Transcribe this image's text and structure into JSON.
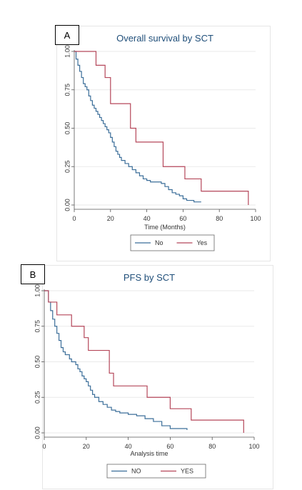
{
  "chart_data": [
    {
      "type": "line",
      "panel_label": "A",
      "title": "Overall survival by SCT",
      "xlabel": "Time (Months)",
      "ylabel": "",
      "xlim": [
        0,
        100
      ],
      "ylim": [
        0,
        1
      ],
      "x_ticks": [
        "0",
        "20",
        "40",
        "60",
        "80",
        "100"
      ],
      "y_ticks": [
        "0.00",
        "0.25",
        "0.50",
        "0.75",
        "1.00"
      ],
      "grid": true,
      "legend_position": "bottom",
      "colors": {
        "No": "#3b6e99",
        "Yes": "#b5475a"
      },
      "series": [
        {
          "name": "No",
          "x": [
            0,
            1,
            2,
            3,
            4,
            5,
            6,
            7,
            8,
            9,
            10,
            11,
            12,
            13,
            14,
            15,
            16,
            17,
            18,
            19,
            20,
            21,
            22,
            23,
            24,
            25,
            26,
            28,
            30,
            32,
            34,
            36,
            38,
            40,
            42,
            45,
            48,
            50,
            52,
            54,
            56,
            58,
            60,
            62,
            66,
            70
          ],
          "y": [
            1.0,
            0.95,
            0.91,
            0.87,
            0.83,
            0.79,
            0.77,
            0.75,
            0.71,
            0.68,
            0.65,
            0.63,
            0.61,
            0.59,
            0.57,
            0.55,
            0.53,
            0.51,
            0.49,
            0.47,
            0.44,
            0.41,
            0.38,
            0.35,
            0.33,
            0.31,
            0.29,
            0.27,
            0.25,
            0.23,
            0.21,
            0.19,
            0.17,
            0.16,
            0.15,
            0.15,
            0.14,
            0.12,
            0.1,
            0.08,
            0.07,
            0.06,
            0.04,
            0.03,
            0.02,
            0.02
          ]
        },
        {
          "name": "Yes",
          "x": [
            0,
            12,
            17,
            20,
            31,
            34,
            49,
            61,
            70,
            96
          ],
          "y": [
            1.0,
            0.91,
            0.83,
            0.66,
            0.5,
            0.41,
            0.25,
            0.17,
            0.09,
            0.0
          ]
        }
      ]
    },
    {
      "type": "line",
      "panel_label": "B",
      "title": "PFS by SCT",
      "xlabel": "Analysis time",
      "ylabel": "",
      "xlim": [
        0,
        100
      ],
      "ylim": [
        0,
        1
      ],
      "x_ticks": [
        "0",
        "20",
        "40",
        "60",
        "80",
        "100"
      ],
      "y_ticks": [
        "0.00",
        "0.25",
        "0.50",
        "0.75",
        "1.00"
      ],
      "grid": true,
      "legend_position": "bottom",
      "colors": {
        "NO": "#3b6e99",
        "YES": "#b5475a"
      },
      "series": [
        {
          "name": "NO",
          "x": [
            0,
            2,
            3,
            4,
            5,
            6,
            7,
            8,
            9,
            10,
            12,
            13,
            15,
            16,
            17,
            18,
            19,
            20,
            21,
            22,
            23,
            24,
            26,
            28,
            30,
            32,
            34,
            36,
            40,
            44,
            48,
            52,
            56,
            60,
            68
          ],
          "y": [
            1.0,
            0.92,
            0.86,
            0.8,
            0.75,
            0.7,
            0.65,
            0.6,
            0.57,
            0.55,
            0.52,
            0.5,
            0.48,
            0.45,
            0.43,
            0.4,
            0.38,
            0.36,
            0.33,
            0.3,
            0.27,
            0.25,
            0.22,
            0.2,
            0.18,
            0.16,
            0.15,
            0.14,
            0.13,
            0.12,
            0.1,
            0.08,
            0.05,
            0.03,
            0.02
          ]
        },
        {
          "name": "YES",
          "x": [
            0,
            2,
            6,
            13,
            19,
            21,
            31,
            33,
            49,
            60,
            70,
            95
          ],
          "y": [
            1.0,
            0.92,
            0.83,
            0.75,
            0.67,
            0.58,
            0.42,
            0.33,
            0.25,
            0.17,
            0.09,
            0.0
          ]
        }
      ]
    }
  ]
}
